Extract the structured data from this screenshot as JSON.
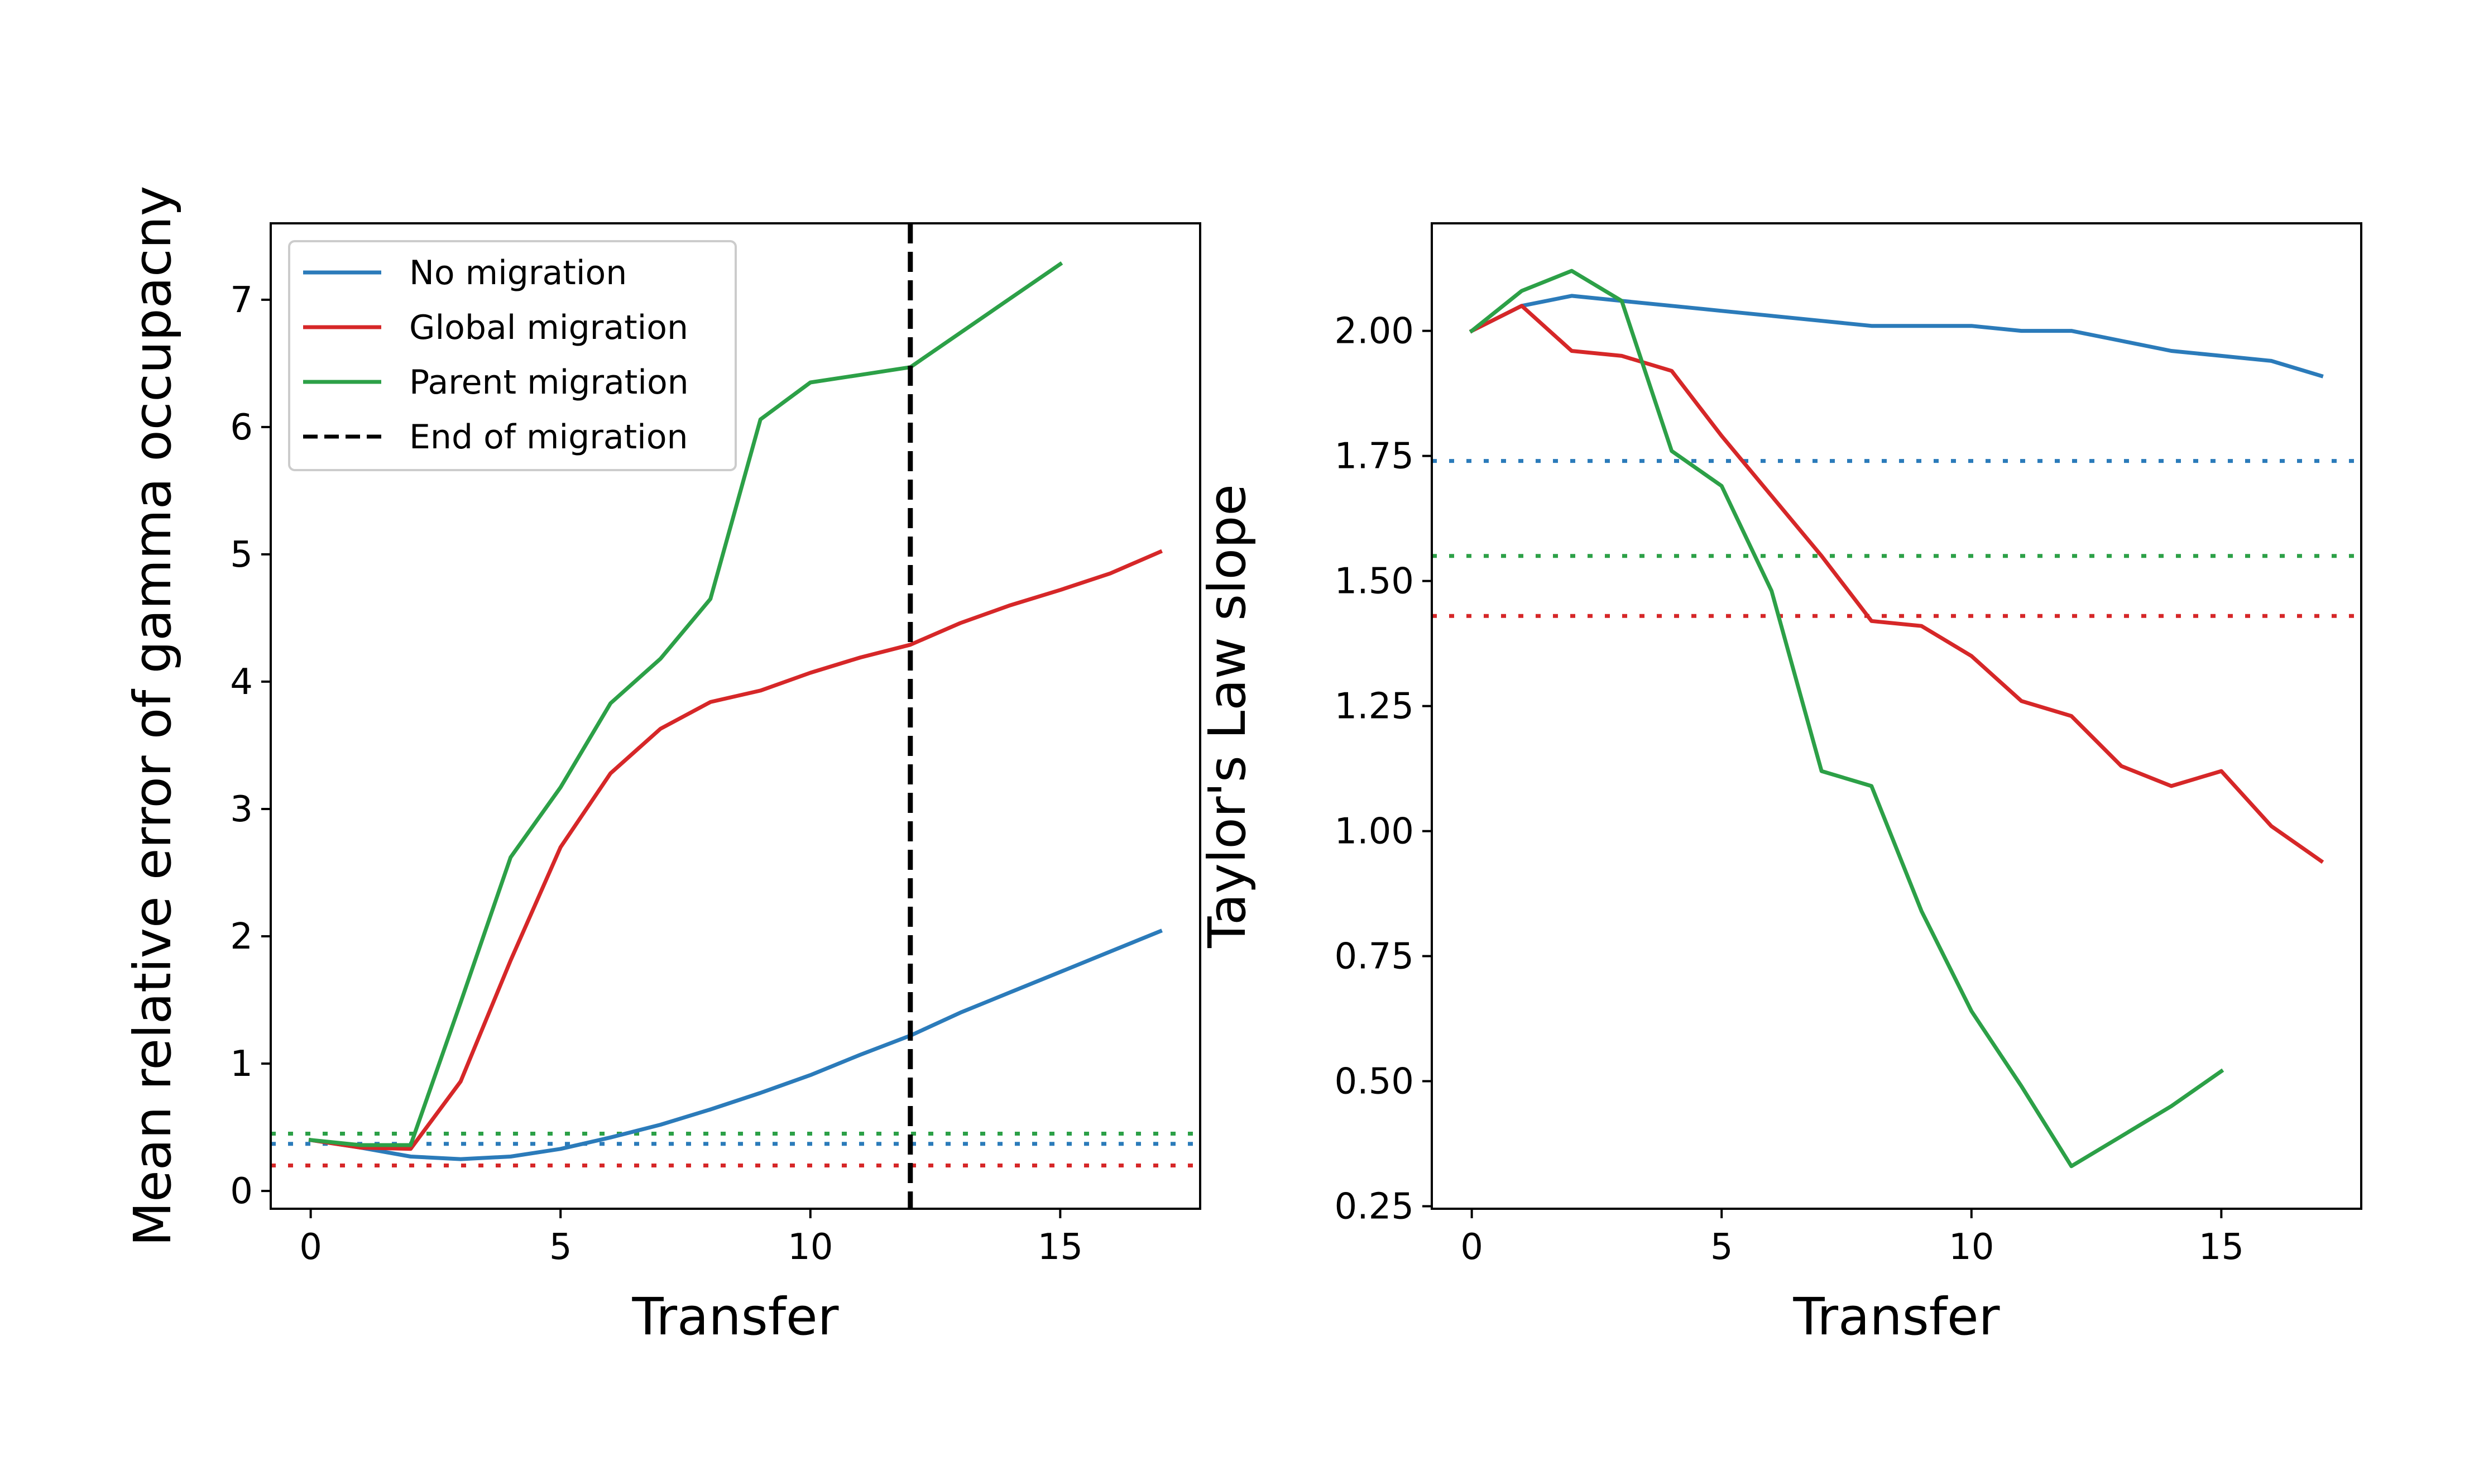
{
  "colors": {
    "no_migration": "#2b7bba",
    "global_migration": "#d62728",
    "parent_migration": "#2ca047",
    "end_of_migration": "#000000"
  },
  "chart_data": [
    {
      "type": "line",
      "xlabel": "Transfer",
      "ylabel": "Mean relative error of gamma occupacny",
      "xlim": [
        -0.8,
        17.8
      ],
      "ylim": [
        -0.14,
        7.6
      ],
      "xticks": [
        0,
        5,
        10,
        15
      ],
      "yticks": [
        0,
        1,
        2,
        3,
        4,
        5,
        6,
        7
      ],
      "grid": false,
      "legend_position": "top-left",
      "legend": [
        {
          "label": "No migration",
          "style": "solid",
          "color_key": "no_migration"
        },
        {
          "label": "Global migration",
          "style": "solid",
          "color_key": "global_migration"
        },
        {
          "label": "Parent migration",
          "style": "solid",
          "color_key": "parent_migration"
        },
        {
          "label": "End of migration",
          "style": "dashed",
          "color_key": "end_of_migration"
        }
      ],
      "series": [
        {
          "name": "No migration",
          "color_key": "no_migration",
          "x": [
            0,
            1,
            2,
            3,
            4,
            5,
            6,
            7,
            8,
            9,
            10,
            11,
            12,
            13,
            14,
            15,
            16,
            17
          ],
          "y": [
            0.4,
            0.34,
            0.27,
            0.25,
            0.27,
            0.33,
            0.42,
            0.52,
            0.64,
            0.77,
            0.91,
            1.07,
            1.22,
            1.4,
            1.56,
            1.72,
            1.88,
            2.04
          ]
        },
        {
          "name": "Global migration",
          "color_key": "global_migration",
          "x": [
            0,
            1,
            2,
            3,
            4,
            5,
            6,
            7,
            8,
            9,
            10,
            11,
            12,
            13,
            14,
            15,
            16,
            17
          ],
          "y": [
            0.4,
            0.34,
            0.33,
            0.86,
            1.81,
            2.7,
            3.28,
            3.63,
            3.84,
            3.93,
            4.07,
            4.19,
            4.29,
            4.46,
            4.6,
            4.72,
            4.85,
            5.02
          ]
        },
        {
          "name": "Parent migration",
          "color_key": "parent_migration",
          "x": [
            0,
            1,
            2,
            3,
            4,
            5,
            6,
            7,
            8,
            9,
            10,
            11,
            12,
            13,
            14,
            15
          ],
          "y": [
            0.4,
            0.36,
            0.36,
            1.48,
            2.62,
            3.17,
            3.83,
            4.18,
            4.65,
            6.06,
            6.35,
            6.41,
            6.47,
            6.74,
            7.01,
            7.28
          ]
        }
      ],
      "reference_lines": [
        {
          "color_key": "no_migration",
          "y": 0.37,
          "style": "dotted"
        },
        {
          "color_key": "global_migration",
          "y": 0.2,
          "style": "dotted"
        },
        {
          "color_key": "parent_migration",
          "y": 0.45,
          "style": "dotted"
        }
      ],
      "vertical_line": {
        "x": 12,
        "style": "dashed",
        "color_key": "end_of_migration"
      }
    },
    {
      "type": "line",
      "xlabel": "Transfer",
      "ylabel": "Taylor's Law slope",
      "xlim": [
        -0.8,
        17.8
      ],
      "ylim": [
        0.245,
        2.215
      ],
      "xticks": [
        0,
        5,
        10,
        15
      ],
      "yticks": [
        0.25,
        0.5,
        0.75,
        1.0,
        1.25,
        1.5,
        1.75,
        2.0
      ],
      "ytick_labels": [
        "0.25",
        "0.50",
        "0.75",
        "1.00",
        "1.25",
        "1.50",
        "1.75",
        "2.00"
      ],
      "grid": false,
      "series": [
        {
          "name": "No migration",
          "color_key": "no_migration",
          "x": [
            0,
            1,
            2,
            3,
            4,
            5,
            6,
            7,
            8,
            9,
            10,
            11,
            12,
            13,
            14,
            15,
            16,
            17
          ],
          "y": [
            2.0,
            2.05,
            2.07,
            2.06,
            2.05,
            2.04,
            2.03,
            2.02,
            2.01,
            2.01,
            2.01,
            2.0,
            2.0,
            1.98,
            1.96,
            1.95,
            1.94,
            1.91
          ]
        },
        {
          "name": "Global migration",
          "color_key": "global_migration",
          "x": [
            0,
            1,
            2,
            3,
            4,
            5,
            6,
            7,
            8,
            9,
            10,
            11,
            12,
            13,
            14,
            15,
            16,
            17
          ],
          "y": [
            2.0,
            2.05,
            1.96,
            1.95,
            1.92,
            1.79,
            1.67,
            1.55,
            1.42,
            1.41,
            1.35,
            1.26,
            1.23,
            1.13,
            1.09,
            1.12,
            1.01,
            0.94
          ]
        },
        {
          "name": "Parent migration",
          "color_key": "parent_migration",
          "x": [
            0,
            1,
            2,
            3,
            4,
            5,
            6,
            7,
            8,
            9,
            10,
            11,
            12,
            13,
            14,
            15
          ],
          "y": [
            2.0,
            2.08,
            2.12,
            2.06,
            1.76,
            1.69,
            1.48,
            1.12,
            1.09,
            0.84,
            0.64,
            0.49,
            0.33,
            0.39,
            0.45,
            0.52
          ]
        }
      ],
      "reference_lines": [
        {
          "color_key": "no_migration",
          "y": 1.74,
          "style": "dotted"
        },
        {
          "color_key": "global_migration",
          "y": 1.43,
          "style": "dotted"
        },
        {
          "color_key": "parent_migration",
          "y": 1.55,
          "style": "dotted"
        }
      ]
    }
  ]
}
